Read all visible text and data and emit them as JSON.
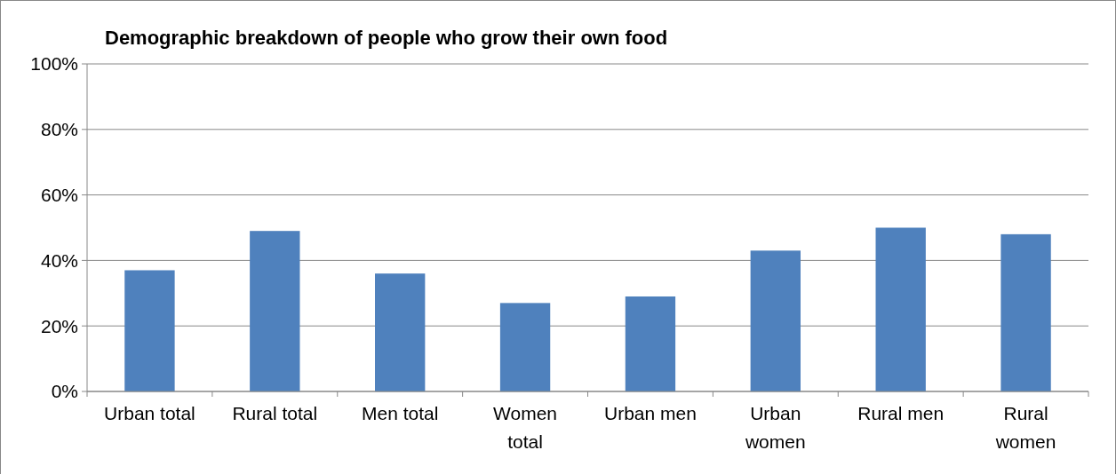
{
  "chart_data": {
    "type": "bar",
    "title": "Demographic breakdown of people who grow their own food",
    "categories": [
      "Urban total",
      "Rural total",
      "Men total",
      "Women total",
      "Urban men",
      "Urban women",
      "Rural men",
      "Rural women"
    ],
    "values": [
      37,
      49,
      36,
      27,
      29,
      43,
      50,
      48
    ],
    "color": "#4f81bd",
    "ylim": [
      0,
      100
    ],
    "yticks": [
      {
        "value": 0,
        "label": "0%"
      },
      {
        "value": 20,
        "label": "20%"
      },
      {
        "value": 40,
        "label": "40%"
      },
      {
        "value": 60,
        "label": "60%"
      },
      {
        "value": 80,
        "label": "80%"
      },
      {
        "value": 100,
        "label": "100%"
      }
    ],
    "grid": true
  }
}
